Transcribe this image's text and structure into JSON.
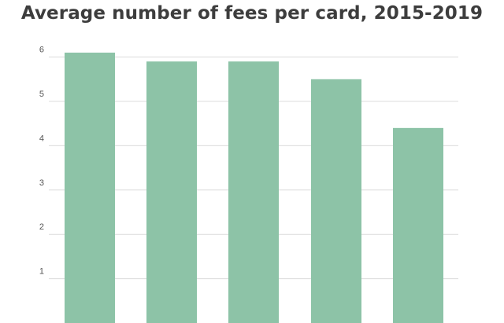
{
  "chart_data": {
    "type": "bar",
    "title": "Average number of fees per card, 2015-2019",
    "xlabel": "",
    "ylabel": "",
    "categories": [
      "",
      "",
      "",
      "",
      ""
    ],
    "values": [
      6.1,
      5.9,
      5.9,
      5.5,
      4.4
    ],
    "ylim": [
      0,
      6.3
    ],
    "yticks": [
      "1",
      "2",
      "3",
      "4",
      "5",
      "6"
    ],
    "grid": true,
    "bar_color": "#8dc3a7",
    "grid_color": "#dcdcdc"
  }
}
